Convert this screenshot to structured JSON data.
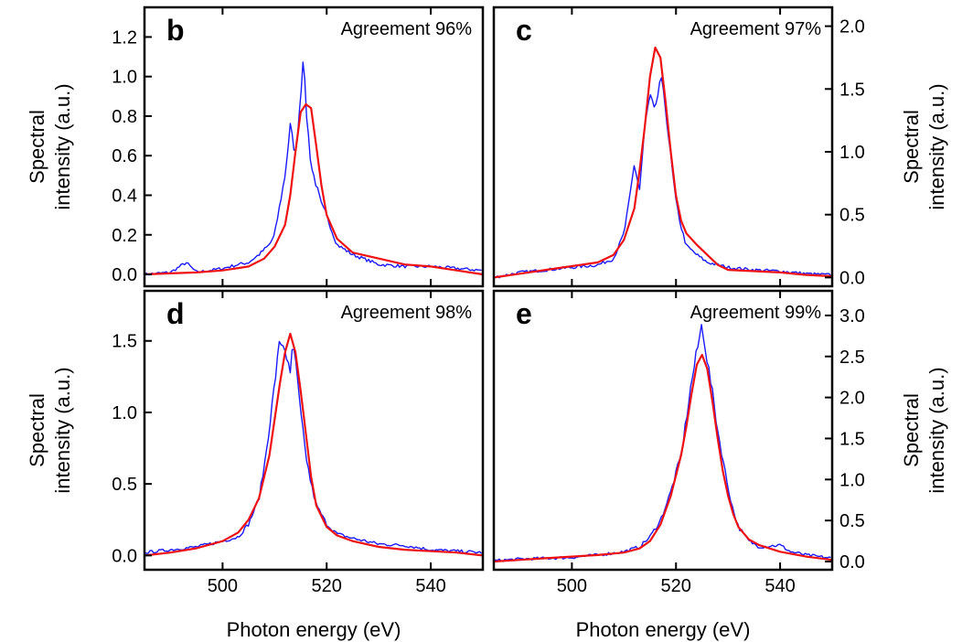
{
  "colors": {
    "measured": "#1a1aff",
    "fit": "#ee1111",
    "frame": "#000000",
    "background": "#ffffff"
  },
  "chart_data": [
    {
      "type": "line",
      "panel": "b",
      "annotation": "Agreement 96%",
      "xlim": [
        485,
        550
      ],
      "ylim": [
        -0.06,
        1.35
      ],
      "yticks": [
        0.0,
        0.2,
        0.4,
        0.6,
        0.8,
        1.0,
        1.2
      ],
      "ytick_labels": [
        "0.0",
        "0.2",
        "0.4",
        "0.6",
        "0.8",
        "1.0",
        "1.2"
      ],
      "y_axis_side": "left",
      "ylabel": [
        "Spectral",
        "intensity (a.u.)"
      ],
      "xlabel": "",
      "xticks": [
        500,
        520,
        540
      ],
      "xtick_labels": [],
      "series": [
        {
          "role": "measured",
          "style": "blue-noisy",
          "points": [
            [
              485,
              0.0
            ],
            [
              490,
              0.01
            ],
            [
              493,
              0.06
            ],
            [
              495,
              0.01
            ],
            [
              500,
              0.03
            ],
            [
              503,
              0.05
            ],
            [
              505,
              0.06
            ],
            [
              507,
              0.1
            ],
            [
              509,
              0.15
            ],
            [
              510,
              0.2
            ],
            [
              511,
              0.35
            ],
            [
              512,
              0.5
            ],
            [
              513,
              0.75
            ],
            [
              514,
              0.6
            ],
            [
              515,
              0.9
            ],
            [
              515.5,
              1.12
            ],
            [
              516,
              0.85
            ],
            [
              517,
              0.55
            ],
            [
              518,
              0.45
            ],
            [
              519,
              0.35
            ],
            [
              520,
              0.3
            ],
            [
              521,
              0.22
            ],
            [
              522,
              0.15
            ],
            [
              525,
              0.1
            ],
            [
              530,
              0.05
            ],
            [
              535,
              0.04
            ],
            [
              540,
              0.04
            ],
            [
              545,
              0.03
            ],
            [
              550,
              0.02
            ]
          ]
        },
        {
          "role": "fit",
          "style": "red-smooth",
          "points": [
            [
              485,
              0.0
            ],
            [
              490,
              0.005
            ],
            [
              495,
              0.01
            ],
            [
              500,
              0.02
            ],
            [
              505,
              0.04
            ],
            [
              508,
              0.08
            ],
            [
              510,
              0.14
            ],
            [
              512,
              0.25
            ],
            [
              513,
              0.4
            ],
            [
              514,
              0.62
            ],
            [
              515,
              0.82
            ],
            [
              516,
              0.86
            ],
            [
              517,
              0.84
            ],
            [
              518,
              0.65
            ],
            [
              519,
              0.45
            ],
            [
              520,
              0.3
            ],
            [
              522,
              0.18
            ],
            [
              525,
              0.11
            ],
            [
              530,
              0.08
            ],
            [
              535,
              0.05
            ],
            [
              540,
              0.04
            ],
            [
              545,
              0.02
            ],
            [
              550,
              0.0
            ]
          ]
        }
      ]
    },
    {
      "type": "line",
      "panel": "c",
      "annotation": "Agreement 97%",
      "xlim": [
        485,
        550
      ],
      "ylim": [
        -0.07,
        2.15
      ],
      "yticks": [
        0.0,
        0.5,
        1.0,
        1.5,
        2.0
      ],
      "ytick_labels": [
        "0.0",
        "0.5",
        "1.0",
        "1.5",
        "2.0"
      ],
      "y_axis_side": "right",
      "ylabel": [
        "Spectral",
        "intensity (a.u.)"
      ],
      "xlabel": "",
      "xticks": [
        500,
        520,
        540
      ],
      "xtick_labels": [],
      "series": [
        {
          "role": "measured",
          "style": "blue-noisy",
          "points": [
            [
              485,
              0.0
            ],
            [
              490,
              0.04
            ],
            [
              495,
              0.06
            ],
            [
              500,
              0.08
            ],
            [
              505,
              0.1
            ],
            [
              508,
              0.15
            ],
            [
              510,
              0.35
            ],
            [
              511,
              0.6
            ],
            [
              512,
              0.9
            ],
            [
              513,
              0.7
            ],
            [
              514,
              1.2
            ],
            [
              515,
              1.45
            ],
            [
              516,
              1.3
            ],
            [
              517,
              1.6
            ],
            [
              518,
              1.35
            ],
            [
              519,
              0.95
            ],
            [
              520,
              0.6
            ],
            [
              521,
              0.4
            ],
            [
              522,
              0.25
            ],
            [
              524,
              0.18
            ],
            [
              526,
              0.12
            ],
            [
              530,
              0.08
            ],
            [
              535,
              0.06
            ],
            [
              540,
              0.05
            ],
            [
              545,
              0.03
            ],
            [
              550,
              0.02
            ]
          ]
        },
        {
          "role": "fit",
          "style": "red-smooth",
          "points": [
            [
              485,
              0.0
            ],
            [
              490,
              0.03
            ],
            [
              495,
              0.06
            ],
            [
              500,
              0.09
            ],
            [
              505,
              0.12
            ],
            [
              508,
              0.18
            ],
            [
              510,
              0.3
            ],
            [
              512,
              0.55
            ],
            [
              513,
              0.85
            ],
            [
              514,
              1.2
            ],
            [
              515,
              1.6
            ],
            [
              516,
              1.83
            ],
            [
              517,
              1.75
            ],
            [
              518,
              1.4
            ],
            [
              519,
              1.0
            ],
            [
              520,
              0.65
            ],
            [
              521,
              0.45
            ],
            [
              522,
              0.35
            ],
            [
              524,
              0.26
            ],
            [
              526,
              0.18
            ],
            [
              528,
              0.1
            ],
            [
              530,
              0.06
            ],
            [
              535,
              0.05
            ],
            [
              540,
              0.04
            ],
            [
              545,
              0.02
            ],
            [
              550,
              0.01
            ]
          ]
        }
      ]
    },
    {
      "type": "line",
      "panel": "d",
      "annotation": "Agreement 98%",
      "xlim": [
        485,
        550
      ],
      "ylim": [
        -0.1,
        1.85
      ],
      "yticks": [
        0.0,
        0.5,
        1.0,
        1.5
      ],
      "ytick_labels": [
        "0.0",
        "0.5",
        "1.0",
        "1.5"
      ],
      "y_axis_side": "left",
      "ylabel": [
        "Spectral",
        "intensity (a.u.)"
      ],
      "xlabel": "Photon energy (eV)",
      "xticks": [
        500,
        520,
        540
      ],
      "xtick_labels": [
        "500",
        "520",
        "540"
      ],
      "series": [
        {
          "role": "measured",
          "style": "blue-noisy",
          "points": [
            [
              485,
              0.02
            ],
            [
              490,
              0.04
            ],
            [
              495,
              0.06
            ],
            [
              500,
              0.1
            ],
            [
              503,
              0.13
            ],
            [
              505,
              0.22
            ],
            [
              507,
              0.4
            ],
            [
              508,
              0.62
            ],
            [
              509,
              0.9
            ],
            [
              510,
              1.2
            ],
            [
              511,
              1.5
            ],
            [
              512,
              1.45
            ],
            [
              513,
              1.25
            ],
            [
              513.5,
              1.5
            ],
            [
              514,
              1.35
            ],
            [
              515,
              1.0
            ],
            [
              516,
              0.7
            ],
            [
              517,
              0.5
            ],
            [
              518,
              0.35
            ],
            [
              520,
              0.22
            ],
            [
              522,
              0.15
            ],
            [
              525,
              0.12
            ],
            [
              530,
              0.08
            ],
            [
              535,
              0.07
            ],
            [
              540,
              0.04
            ],
            [
              545,
              0.03
            ],
            [
              550,
              0.02
            ]
          ]
        },
        {
          "role": "fit",
          "style": "red-smooth",
          "points": [
            [
              485,
              0.0
            ],
            [
              490,
              0.02
            ],
            [
              495,
              0.05
            ],
            [
              500,
              0.1
            ],
            [
              503,
              0.16
            ],
            [
              505,
              0.25
            ],
            [
              507,
              0.4
            ],
            [
              509,
              0.7
            ],
            [
              510,
              0.95
            ],
            [
              511,
              1.2
            ],
            [
              512,
              1.42
            ],
            [
              513,
              1.55
            ],
            [
              514,
              1.42
            ],
            [
              515,
              1.15
            ],
            [
              516,
              0.85
            ],
            [
              517,
              0.55
            ],
            [
              518,
              0.35
            ],
            [
              520,
              0.2
            ],
            [
              522,
              0.14
            ],
            [
              525,
              0.1
            ],
            [
              530,
              0.06
            ],
            [
              535,
              0.04
            ],
            [
              540,
              0.03
            ],
            [
              545,
              0.02
            ],
            [
              550,
              0.0
            ]
          ]
        }
      ]
    },
    {
      "type": "line",
      "panel": "e",
      "annotation": "Agreement 99%",
      "xlim": [
        485,
        550
      ],
      "ylim": [
        -0.1,
        3.3
      ],
      "yticks": [
        0.0,
        0.5,
        1.0,
        1.5,
        2.0,
        2.5,
        3.0
      ],
      "ytick_labels": [
        "0.0",
        "0.5",
        "1.0",
        "1.5",
        "2.0",
        "2.5",
        "3.0"
      ],
      "y_axis_side": "right",
      "ylabel": [
        "Spectral",
        "intensity (a.u.)"
      ],
      "xlabel": "Photon energy (eV)",
      "xticks": [
        500,
        520,
        540
      ],
      "xtick_labels": [
        "500",
        "520",
        "540"
      ],
      "series": [
        {
          "role": "measured",
          "style": "blue-noisy",
          "points": [
            [
              485,
              0.01
            ],
            [
              490,
              0.03
            ],
            [
              495,
              0.04
            ],
            [
              500,
              0.05
            ],
            [
              505,
              0.08
            ],
            [
              510,
              0.12
            ],
            [
              513,
              0.18
            ],
            [
              515,
              0.3
            ],
            [
              517,
              0.5
            ],
            [
              519,
              0.85
            ],
            [
              521,
              1.3
            ],
            [
              522,
              1.75
            ],
            [
              523,
              2.2
            ],
            [
              524,
              2.55
            ],
            [
              525,
              2.9
            ],
            [
              526,
              2.45
            ],
            [
              527,
              2.05
            ],
            [
              528,
              1.6
            ],
            [
              529,
              1.25
            ],
            [
              530,
              0.9
            ],
            [
              531,
              0.62
            ],
            [
              532,
              0.42
            ],
            [
              534,
              0.25
            ],
            [
              536,
              0.18
            ],
            [
              540,
              0.2
            ],
            [
              542,
              0.12
            ],
            [
              545,
              0.08
            ],
            [
              550,
              0.04
            ]
          ]
        },
        {
          "role": "fit",
          "style": "red-smooth",
          "points": [
            [
              485,
              0.0
            ],
            [
              490,
              0.02
            ],
            [
              495,
              0.04
            ],
            [
              500,
              0.06
            ],
            [
              505,
              0.08
            ],
            [
              510,
              0.11
            ],
            [
              513,
              0.16
            ],
            [
              515,
              0.25
            ],
            [
              517,
              0.45
            ],
            [
              519,
              0.8
            ],
            [
              521,
              1.3
            ],
            [
              522,
              1.65
            ],
            [
              523,
              2.05
            ],
            [
              524,
              2.4
            ],
            [
              525,
              2.52
            ],
            [
              526,
              2.35
            ],
            [
              527,
              1.95
            ],
            [
              528,
              1.5
            ],
            [
              529,
              1.1
            ],
            [
              530,
              0.8
            ],
            [
              531,
              0.58
            ],
            [
              532,
              0.42
            ],
            [
              534,
              0.27
            ],
            [
              536,
              0.2
            ],
            [
              540,
              0.12
            ],
            [
              545,
              0.06
            ],
            [
              550,
              0.02
            ]
          ]
        }
      ]
    }
  ]
}
